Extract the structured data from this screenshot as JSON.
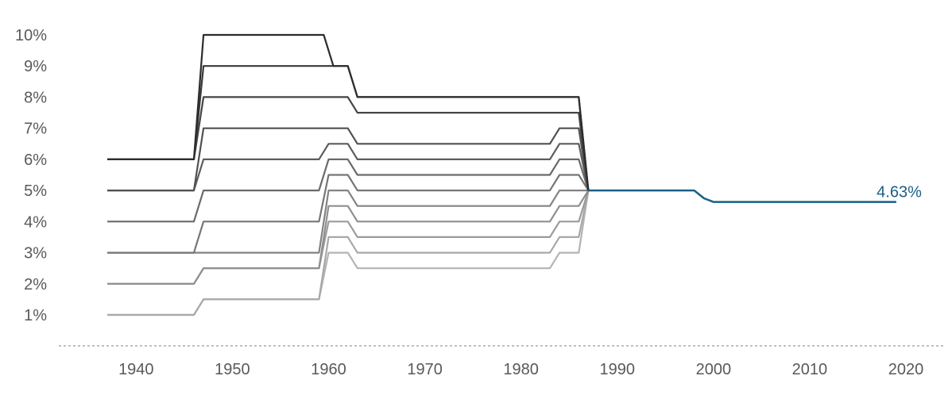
{
  "chart_data": {
    "type": "line",
    "title": "",
    "xlabel": "",
    "ylabel": "",
    "xlim": [
      1937,
      2022
    ],
    "ylim": [
      0,
      10
    ],
    "x_ticks": [
      1940,
      1950,
      1960,
      1970,
      1980,
      1990,
      2000,
      2010,
      2020
    ],
    "x_tick_labels": [
      "1940",
      "1950",
      "1960",
      "1970",
      "1980",
      "1990",
      "2000",
      "2010",
      "2020"
    ],
    "y_ticks": [
      1,
      2,
      3,
      4,
      5,
      6,
      7,
      8,
      9,
      10
    ],
    "y_tick_labels": [
      "1%",
      "2%",
      "3%",
      "4%",
      "5%",
      "6%",
      "7%",
      "8%",
      "9%",
      "10%"
    ],
    "grid": false,
    "legend": "none",
    "x_axis_line": "dashed",
    "colors": {
      "gray_ramp": [
        "#b4b4b4",
        "#a8a8a8",
        "#9b9b9b",
        "#8f8f8f",
        "#838383",
        "#767676",
        "#6a6a6a",
        "#5d5d5d",
        "#515151",
        "#454545",
        "#383838",
        "#2c2c2c",
        "#1f1f1f"
      ],
      "highlight": "#1b5f86"
    },
    "series": [
      {
        "points": [
          [
            1937,
            1
          ],
          [
            1946,
            1
          ],
          [
            1947,
            1.5
          ],
          [
            1959,
            1.5
          ],
          [
            1960,
            3
          ],
          [
            1962,
            3
          ],
          [
            1963,
            2.5
          ],
          [
            1983,
            2.5
          ],
          [
            1984,
            3
          ],
          [
            1986,
            3
          ],
          [
            1987,
            5
          ]
        ]
      },
      {
        "points": [
          [
            1937,
            1
          ],
          [
            1946,
            1
          ],
          [
            1947,
            1.5
          ],
          [
            1959,
            1.5
          ],
          [
            1960,
            3.5
          ],
          [
            1962,
            3.5
          ],
          [
            1963,
            3
          ],
          [
            1983,
            3
          ],
          [
            1984,
            3.5
          ],
          [
            1986,
            3.5
          ],
          [
            1987,
            5
          ]
        ]
      },
      {
        "points": [
          [
            1937,
            2
          ],
          [
            1946,
            2
          ],
          [
            1947,
            2.5
          ],
          [
            1959,
            2.5
          ],
          [
            1960,
            4
          ],
          [
            1962,
            4
          ],
          [
            1963,
            3.5
          ],
          [
            1983,
            3.5
          ],
          [
            1984,
            4
          ],
          [
            1986,
            4
          ],
          [
            1987,
            5
          ]
        ]
      },
      {
        "points": [
          [
            1937,
            2
          ],
          [
            1946,
            2
          ],
          [
            1947,
            2.5
          ],
          [
            1959,
            2.5
          ],
          [
            1960,
            4.5
          ],
          [
            1962,
            4.5
          ],
          [
            1963,
            4
          ],
          [
            1983,
            4
          ],
          [
            1984,
            4.5
          ],
          [
            1986,
            4.5
          ],
          [
            1987,
            5
          ]
        ]
      },
      {
        "points": [
          [
            1937,
            3
          ],
          [
            1946,
            3
          ],
          [
            1947,
            3
          ],
          [
            1959,
            3
          ],
          [
            1960,
            5
          ],
          [
            1962,
            5
          ],
          [
            1963,
            4.5
          ],
          [
            1983,
            4.5
          ],
          [
            1984,
            5
          ],
          [
            1986,
            5
          ],
          [
            1987,
            5
          ]
        ]
      },
      {
        "points": [
          [
            1937,
            3
          ],
          [
            1946,
            3
          ],
          [
            1947,
            4
          ],
          [
            1959,
            4
          ],
          [
            1960,
            5.5
          ],
          [
            1962,
            5.5
          ],
          [
            1963,
            5
          ],
          [
            1983,
            5
          ],
          [
            1984,
            5.5
          ],
          [
            1986,
            5.5
          ],
          [
            1987,
            5
          ]
        ]
      },
      {
        "points": [
          [
            1937,
            4
          ],
          [
            1946,
            4
          ],
          [
            1947,
            5
          ],
          [
            1959,
            5
          ],
          [
            1960,
            6
          ],
          [
            1962,
            6
          ],
          [
            1963,
            5.5
          ],
          [
            1983,
            5.5
          ],
          [
            1984,
            6
          ],
          [
            1986,
            6
          ],
          [
            1987,
            5
          ]
        ]
      },
      {
        "points": [
          [
            1937,
            5
          ],
          [
            1946,
            5
          ],
          [
            1947,
            6
          ],
          [
            1959,
            6
          ],
          [
            1960,
            6.5
          ],
          [
            1962,
            6.5
          ],
          [
            1963,
            6
          ],
          [
            1983,
            6
          ],
          [
            1984,
            6.5
          ],
          [
            1986,
            6.5
          ],
          [
            1987,
            5
          ]
        ]
      },
      {
        "points": [
          [
            1937,
            5
          ],
          [
            1946,
            5
          ],
          [
            1947,
            7
          ],
          [
            1962,
            7
          ],
          [
            1963,
            6.5
          ],
          [
            1983,
            6.5
          ],
          [
            1984,
            7
          ],
          [
            1986,
            7
          ],
          [
            1987,
            5
          ]
        ]
      },
      {
        "points": [
          [
            1937,
            6
          ],
          [
            1946,
            6
          ],
          [
            1947,
            8
          ],
          [
            1962,
            8
          ],
          [
            1963,
            7.5
          ],
          [
            1986,
            7.5
          ],
          [
            1987,
            5
          ]
        ]
      },
      {
        "points": [
          [
            1937,
            6
          ],
          [
            1946,
            6
          ],
          [
            1947,
            9
          ],
          [
            1962,
            9
          ],
          [
            1963,
            8
          ],
          [
            1986,
            8
          ],
          [
            1987,
            5
          ]
        ]
      },
      {
        "points": [
          [
            1937,
            6
          ],
          [
            1946,
            6
          ],
          [
            1947,
            10
          ],
          [
            1959.5,
            10
          ],
          [
            1960.5,
            9
          ],
          [
            1962,
            9
          ],
          [
            1963,
            8
          ],
          [
            1986,
            8
          ],
          [
            1987,
            5
          ]
        ]
      },
      {
        "highlight": true,
        "points": [
          [
            1987,
            5
          ],
          [
            1998,
            5
          ],
          [
            1999,
            4.75
          ],
          [
            2000,
            4.63
          ],
          [
            2019,
            4.63
          ]
        ]
      }
    ],
    "annotations": [
      {
        "text": "4.63%",
        "x": 2019,
        "y": 4.63
      }
    ]
  }
}
